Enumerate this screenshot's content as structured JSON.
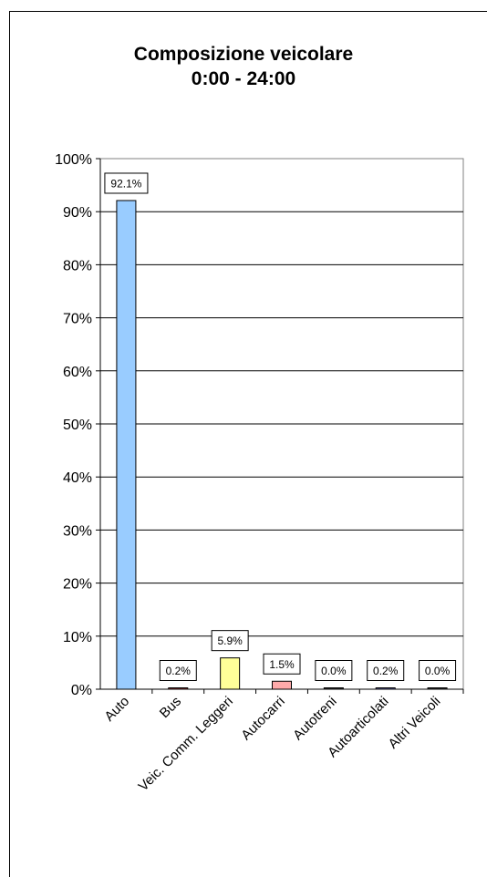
{
  "chart_data": {
    "type": "bar",
    "title": "Composizione veicolare",
    "subtitle": "0:00 - 24:00",
    "categories": [
      "Auto",
      "Bus",
      "Veic. Comm. Leggeri",
      "Autocarri",
      "Autotreni",
      "Autoarticolati",
      "Altri Veicoli"
    ],
    "values": [
      92.1,
      0.2,
      5.9,
      1.5,
      0.0,
      0.2,
      0.0
    ],
    "data_labels": [
      "92.1%",
      "0.2%",
      "5.9%",
      "1.5%",
      "0.0%",
      "0.2%",
      "0.0%"
    ],
    "colors": [
      "#99ccff",
      "#993333",
      "#ffff99",
      "#ffaaaa",
      "#333333",
      "#6666aa",
      "#333333"
    ],
    "ylim": [
      0,
      100
    ],
    "yticks": [
      "0%",
      "10%",
      "20%",
      "30%",
      "40%",
      "50%",
      "60%",
      "70%",
      "80%",
      "90%",
      "100%"
    ],
    "grid": true,
    "legend": "none"
  }
}
